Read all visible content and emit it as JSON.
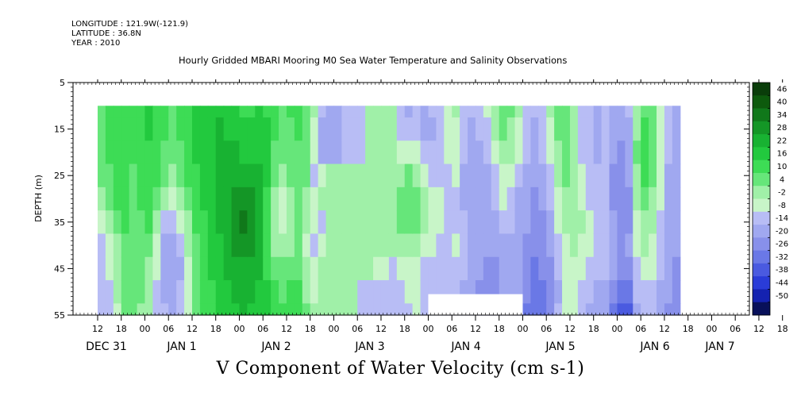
{
  "header": {
    "longitude": "LONGITUDE : 121.9W(-121.9)",
    "latitude": "LATITUDE : 36.8N",
    "year": "YEAR : 2010",
    "title": "Hourly Gridded MBARI Mooring M0 Sea Water Temperature and Salinity Observations"
  },
  "chart_data": {
    "type": "heatmap",
    "title": "Hourly Gridded MBARI Mooring M0 Sea Water Temperature and Salinity Observations",
    "xlabel": "V Component of Water Velocity (cm s-1)",
    "ylabel": "DEPTH (m)",
    "ylim": [
      55,
      5
    ],
    "yticks": [
      "5",
      "15",
      "25",
      "35",
      "45",
      "55"
    ],
    "x_hour_ticks": [
      "12",
      "18",
      "00",
      "06",
      "12",
      "18",
      "00",
      "06",
      "12",
      "18",
      "00",
      "06",
      "12",
      "18",
      "00",
      "06",
      "12",
      "18",
      "00",
      "06",
      "12",
      "18",
      "00",
      "06",
      "12",
      "18",
      "00",
      "06",
      "12",
      "18",
      "00",
      "06"
    ],
    "x_day_labels": [
      "DEC 31",
      "JAN  1",
      "JAN  2",
      "JAN  3",
      "JAN  4",
      "JAN  5",
      "JAN  6",
      "JAN  7"
    ],
    "colorbar": {
      "labels": [
        "46",
        "40",
        "34",
        "28",
        "22",
        "16",
        "10",
        "4",
        "-2",
        "-8",
        "-14",
        "-20",
        "-26",
        "-32",
        "-38",
        "-44",
        "-50"
      ],
      "colors": [
        "#0a3d0a",
        "#0d5a0d",
        "#10781a",
        "#149626",
        "#18b232",
        "#22c93e",
        "#3ddc55",
        "#66e67a",
        "#a0f0a8",
        "#c8f5c8",
        "#b8bdf5",
        "#a0a8f0",
        "#8890ea",
        "#6a78e6",
        "#4a5ae0",
        "#2a3cd8",
        "#1422b0",
        "#08105a"
      ]
    },
    "data_range": {
      "depth_min": 10,
      "depth_max": 55
    },
    "time_columns_hours_from_dec31_00": [
      12,
      14,
      16,
      18,
      20,
      22,
      24,
      26,
      28,
      30,
      32,
      34,
      36,
      38,
      40,
      42,
      44,
      46,
      48,
      50,
      52,
      54,
      56,
      58,
      60,
      62,
      64,
      66,
      68,
      70,
      72,
      74,
      76,
      78,
      80,
      82,
      84,
      86,
      88,
      90,
      92,
      94,
      96,
      98,
      100,
      102,
      104,
      106,
      108,
      110,
      112,
      114,
      116,
      118,
      120,
      122,
      124,
      126,
      128,
      130,
      132,
      134,
      136,
      138,
      140,
      142,
      144,
      146,
      148,
      150,
      152,
      154,
      156,
      158
    ],
    "depth_rows": [
      10,
      15,
      20,
      25,
      30,
      35,
      40,
      45,
      50,
      55
    ],
    "values_by_column": [
      [
        14,
        14,
        12,
        10,
        6,
        2,
        -4,
        -6,
        -8,
        -8
      ],
      [
        18,
        18,
        16,
        14,
        10,
        6,
        2,
        -2,
        -4,
        -6
      ],
      [
        20,
        20,
        20,
        18,
        16,
        12,
        8,
        6,
        4,
        2
      ],
      [
        18,
        18,
        18,
        18,
        16,
        16,
        14,
        12,
        12,
        10
      ],
      [
        16,
        16,
        16,
        14,
        14,
        12,
        12,
        12,
        10,
        10
      ],
      [
        20,
        20,
        18,
        18,
        16,
        14,
        12,
        10,
        10,
        8
      ],
      [
        22,
        22,
        20,
        20,
        18,
        16,
        12,
        8,
        6,
        4
      ],
      [
        20,
        20,
        20,
        18,
        14,
        8,
        2,
        -2,
        -4,
        -4
      ],
      [
        16,
        16,
        14,
        10,
        4,
        -4,
        -10,
        -12,
        -10,
        -8
      ],
      [
        14,
        14,
        12,
        8,
        2,
        -6,
        -12,
        -14,
        -12,
        -10
      ],
      [
        16,
        16,
        14,
        12,
        6,
        -2,
        -8,
        -10,
        -8,
        -6
      ],
      [
        20,
        20,
        18,
        16,
        12,
        8,
        4,
        2,
        2,
        2
      ],
      [
        22,
        22,
        22,
        20,
        18,
        16,
        14,
        12,
        12,
        10
      ],
      [
        24,
        24,
        24,
        22,
        22,
        20,
        18,
        16,
        16,
        16
      ],
      [
        26,
        26,
        26,
        26,
        24,
        24,
        22,
        22,
        20,
        20
      ],
      [
        26,
        28,
        28,
        28,
        28,
        28,
        26,
        24,
        24,
        22
      ],
      [
        24,
        26,
        28,
        30,
        32,
        32,
        30,
        28,
        26,
        24
      ],
      [
        22,
        24,
        28,
        30,
        34,
        36,
        34,
        30,
        28,
        26
      ],
      [
        20,
        22,
        26,
        30,
        34,
        40,
        38,
        32,
        30,
        28
      ],
      [
        20,
        22,
        26,
        30,
        34,
        38,
        36,
        32,
        28,
        26
      ],
      [
        22,
        24,
        26,
        28,
        30,
        32,
        30,
        28,
        26,
        24
      ],
      [
        20,
        22,
        22,
        22,
        20,
        18,
        18,
        20,
        22,
        24
      ],
      [
        16,
        16,
        14,
        10,
        6,
        4,
        6,
        10,
        16,
        20
      ],
      [
        14,
        12,
        10,
        6,
        0,
        -2,
        4,
        10,
        14,
        16
      ],
      [
        16,
        14,
        12,
        10,
        8,
        6,
        8,
        12,
        16,
        16
      ],
      [
        16,
        16,
        14,
        14,
        12,
        12,
        14,
        14,
        16,
        16
      ],
      [
        14,
        14,
        12,
        10,
        6,
        4,
        2,
        4,
        8,
        10
      ],
      [
        4,
        2,
        -2,
        -4,
        -2,
        0,
        -4,
        -2,
        2,
        4
      ],
      [
        -8,
        -10,
        -10,
        2,
        4,
        -6,
        2,
        4,
        4,
        4
      ],
      [
        -10,
        -12,
        -12,
        4,
        6,
        4,
        4,
        4,
        4,
        4
      ],
      [
        -10,
        -10,
        -10,
        4,
        6,
        6,
        4,
        4,
        4,
        4
      ],
      [
        -6,
        -8,
        -8,
        4,
        4,
        6,
        4,
        4,
        4,
        4
      ],
      [
        -6,
        -6,
        -6,
        4,
        4,
        4,
        4,
        4,
        4,
        4
      ],
      [
        -4,
        -4,
        -4,
        4,
        4,
        4,
        4,
        4,
        -4,
        -6
      ],
      [
        4,
        4,
        4,
        4,
        4,
        4,
        4,
        4,
        -6,
        -8
      ],
      [
        6,
        6,
        6,
        4,
        4,
        4,
        4,
        -2,
        -6,
        -8
      ],
      [
        8,
        8,
        8,
        6,
        6,
        4,
        4,
        -2,
        -6,
        -8
      ],
      [
        4,
        4,
        4,
        4,
        4,
        4,
        4,
        -4,
        -6,
        -8
      ],
      [
        -6,
        -4,
        2,
        8,
        12,
        10,
        6,
        -2,
        -4,
        -6
      ],
      [
        -10,
        -6,
        0,
        10,
        14,
        12,
        8,
        0,
        -2,
        -4
      ],
      [
        -8,
        -6,
        -2,
        6,
        12,
        10,
        6,
        2,
        0,
        -2
      ],
      [
        -10,
        -10,
        -8,
        -2,
        4,
        6,
        2,
        -4,
        -6,
        -6
      ],
      [
        -8,
        -10,
        -8,
        -4,
        0,
        2,
        -2,
        -6,
        -8,
        -8
      ],
      [
        -4,
        -6,
        -6,
        -4,
        -2,
        -2,
        -4,
        -6,
        -8,
        -8
      ],
      [
        2,
        0,
        -2,
        -4,
        -6,
        -4,
        -4,
        -6,
        -8,
        -10
      ],
      [
        4,
        2,
        0,
        -2,
        -4,
        -4,
        -2,
        -4,
        -6,
        -8
      ],
      [
        -4,
        -6,
        -8,
        -10,
        -10,
        -8,
        -6,
        -8,
        -10,
        -12
      ],
      [
        -8,
        -10,
        -12,
        -14,
        -14,
        -12,
        -10,
        -12,
        -14,
        -14
      ],
      [
        -6,
        -8,
        -10,
        -12,
        -14,
        -14,
        -12,
        -14,
        -16,
        -18
      ],
      [
        -2,
        -4,
        -8,
        -10,
        -12,
        -14,
        -14,
        -16,
        -18,
        -20
      ],
      [
        6,
        4,
        0,
        -4,
        -8,
        -12,
        -14,
        -16,
        -18,
        -18
      ],
      [
        12,
        10,
        6,
        2,
        -2,
        -6,
        -10,
        -12,
        -14,
        -12
      ],
      [
        10,
        8,
        4,
        0,
        -4,
        -8,
        -10,
        -12,
        -10,
        -8
      ],
      [
        4,
        2,
        -2,
        -6,
        -10,
        -12,
        -14,
        -14,
        -12,
        -10
      ],
      [
        -4,
        -6,
        -8,
        -10,
        -12,
        -14,
        -16,
        -18,
        -20,
        -22
      ],
      [
        -8,
        -10,
        -12,
        -14,
        -16,
        -18,
        -20,
        -22,
        -24,
        -26
      ],
      [
        -4,
        -6,
        -8,
        -10,
        -14,
        -16,
        -18,
        -20,
        -24,
        -26
      ],
      [
        4,
        2,
        0,
        -4,
        -8,
        -10,
        -14,
        -16,
        -18,
        -18
      ],
      [
        12,
        10,
        8,
        6,
        2,
        -2,
        -6,
        -8,
        -10,
        -8
      ],
      [
        14,
        12,
        12,
        10,
        8,
        6,
        2,
        0,
        -2,
        -2
      ],
      [
        6,
        6,
        6,
        8,
        8,
        6,
        4,
        2,
        0,
        -2
      ],
      [
        -4,
        -6,
        -6,
        -2,
        2,
        4,
        2,
        0,
        -4,
        -6
      ],
      [
        -8,
        -8,
        -8,
        -6,
        -4,
        -2,
        -2,
        -4,
        -8,
        -10
      ],
      [
        -10,
        -10,
        -10,
        -8,
        -6,
        -4,
        -4,
        -6,
        -10,
        -12
      ],
      [
        -6,
        -8,
        -8,
        -8,
        -6,
        -6,
        -6,
        -8,
        -10,
        -12
      ],
      [
        -10,
        -12,
        -14,
        -16,
        -16,
        -14,
        -12,
        -14,
        -18,
        -24
      ],
      [
        -12,
        -14,
        -16,
        -18,
        -20,
        -18,
        -16,
        -18,
        -24,
        -30
      ],
      [
        -8,
        -10,
        -12,
        -14,
        -16,
        -16,
        -14,
        -16,
        -22,
        -28
      ],
      [
        6,
        8,
        10,
        8,
        4,
        0,
        -2,
        -4,
        -8,
        -14
      ],
      [
        14,
        16,
        18,
        16,
        12,
        8,
        4,
        0,
        -4,
        -8
      ],
      [
        10,
        12,
        12,
        10,
        8,
        6,
        2,
        -2,
        -4,
        -6
      ],
      [
        2,
        2,
        2,
        0,
        -2,
        -4,
        -6,
        -8,
        -10,
        -12
      ],
      [
        -6,
        -8,
        -8,
        -10,
        -12,
        -12,
        -12,
        -14,
        -14,
        -16
      ],
      [
        -10,
        -10,
        -12,
        -12,
        -14,
        -14,
        -14,
        -16,
        -16,
        -16
      ]
    ]
  }
}
